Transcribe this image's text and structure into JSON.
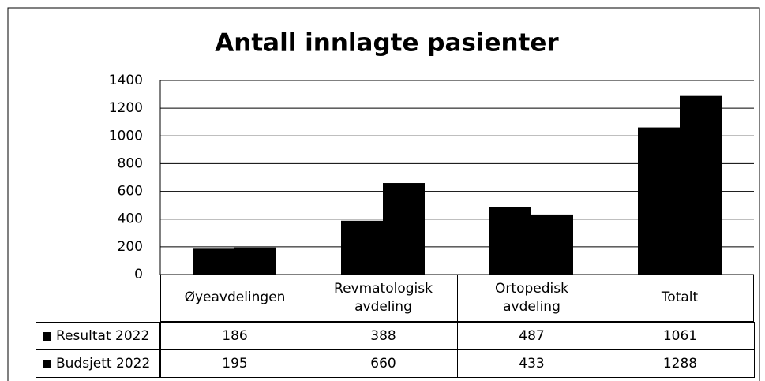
{
  "chart_data": {
    "type": "bar",
    "title": "Antall innlagte pasienter",
    "categories": [
      "Øyeavdelingen",
      "Revmatologisk avdeling",
      "Ortopedisk avdeling",
      "Totalt"
    ],
    "series": [
      {
        "name": "Resultat 2022",
        "color": "#000000",
        "values": [
          186,
          388,
          487,
          1061
        ]
      },
      {
        "name": "Budsjett 2022",
        "color": "#000000",
        "values": [
          195,
          660,
          433,
          1288
        ]
      }
    ],
    "ylim": [
      0,
      1400
    ],
    "yticks": [
      0,
      200,
      400,
      600,
      800,
      1000,
      1200,
      1400
    ],
    "grid": true,
    "legend": "table"
  }
}
